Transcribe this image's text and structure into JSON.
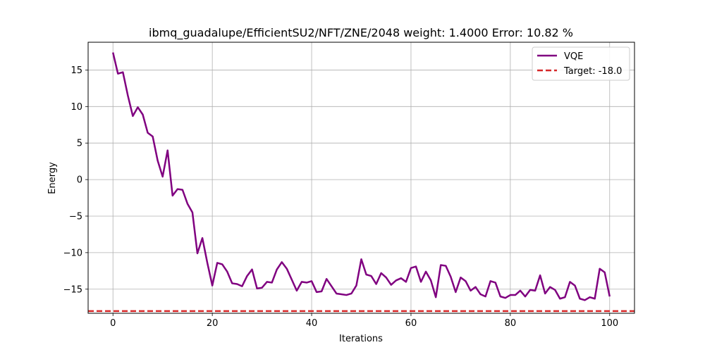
{
  "chart_data": {
    "type": "line",
    "title": "ibmq_guadalupe/EfficientSU2/NFT/ZNE/2048 weight: 1.4000 Error: 10.82 %",
    "xlabel": "Iterations",
    "ylabel": "Energy",
    "xlim": [
      -5,
      105
    ],
    "ylim": [
      -18.3,
      18.8
    ],
    "grid": true,
    "legend_position": "top-right",
    "xticks": [
      0,
      20,
      40,
      60,
      80,
      100
    ],
    "xtick_labels": [
      "0",
      "20",
      "40",
      "60",
      "80",
      "100"
    ],
    "yticks": [
      15,
      10,
      5,
      0,
      -5,
      -10,
      -15
    ],
    "ytick_labels": [
      "15",
      "10",
      "5",
      "0",
      "−5",
      "−10",
      "−15"
    ],
    "series": [
      {
        "name": "VQE",
        "color": "#800080",
        "x": [
          0,
          1,
          2,
          3,
          4,
          5,
          6,
          7,
          8,
          9,
          10,
          11,
          12,
          13,
          14,
          15,
          16,
          17,
          18,
          19,
          20,
          21,
          22,
          23,
          24,
          25,
          26,
          27,
          28,
          29,
          30,
          31,
          32,
          33,
          34,
          35,
          36,
          37,
          38,
          39,
          40,
          41,
          42,
          43,
          44,
          45,
          46,
          47,
          48,
          49,
          50,
          51,
          52,
          53,
          54,
          55,
          56,
          57,
          58,
          59,
          60,
          61,
          62,
          63,
          64,
          65,
          66,
          67,
          68,
          69,
          70,
          71,
          72,
          73,
          74,
          75,
          76,
          77,
          78,
          79,
          80,
          81,
          82,
          83,
          84,
          85,
          86,
          87,
          88,
          89,
          90,
          91,
          92,
          93,
          94,
          95,
          96,
          97,
          98,
          99,
          100
        ],
        "y": [
          17.4,
          14.5,
          14.7,
          11.5,
          8.7,
          9.9,
          8.9,
          6.4,
          5.9,
          2.6,
          0.4,
          4.0,
          -2.2,
          -1.3,
          -1.4,
          -3.3,
          -4.5,
          -10.1,
          -8.0,
          -11.4,
          -14.5,
          -11.4,
          -11.6,
          -12.6,
          -14.2,
          -14.3,
          -14.6,
          -13.2,
          -12.3,
          -14.9,
          -14.8,
          -14.0,
          -14.1,
          -12.3,
          -11.3,
          -12.2,
          -13.7,
          -15.2,
          -14.0,
          -14.1,
          -13.9,
          -15.4,
          -15.3,
          -13.6,
          -14.6,
          -15.6,
          -15.7,
          -15.8,
          -15.6,
          -14.5,
          -10.9,
          -13.0,
          -13.2,
          -14.3,
          -12.8,
          -13.4,
          -14.4,
          -13.8,
          -13.5,
          -14.0,
          -12.1,
          -11.9,
          -14.0,
          -12.6,
          -13.8,
          -16.1,
          -11.7,
          -11.8,
          -13.3,
          -15.4,
          -13.4,
          -13.9,
          -15.2,
          -14.7,
          -15.7,
          -16.0,
          -13.9,
          -14.1,
          -16.0,
          -16.2,
          -15.8,
          -15.8,
          -15.2,
          -16.0,
          -15.1,
          -15.2,
          -13.1,
          -15.6,
          -14.7,
          -15.1,
          -16.3,
          -16.1,
          -14.0,
          -14.5,
          -16.3,
          -16.5,
          -16.1,
          -16.3,
          -12.2,
          -12.7,
          -16.0
        ]
      },
      {
        "name": "Target: -18.0",
        "color": "#d62728",
        "style": "dashed",
        "y_constant": -18.0
      }
    ]
  }
}
